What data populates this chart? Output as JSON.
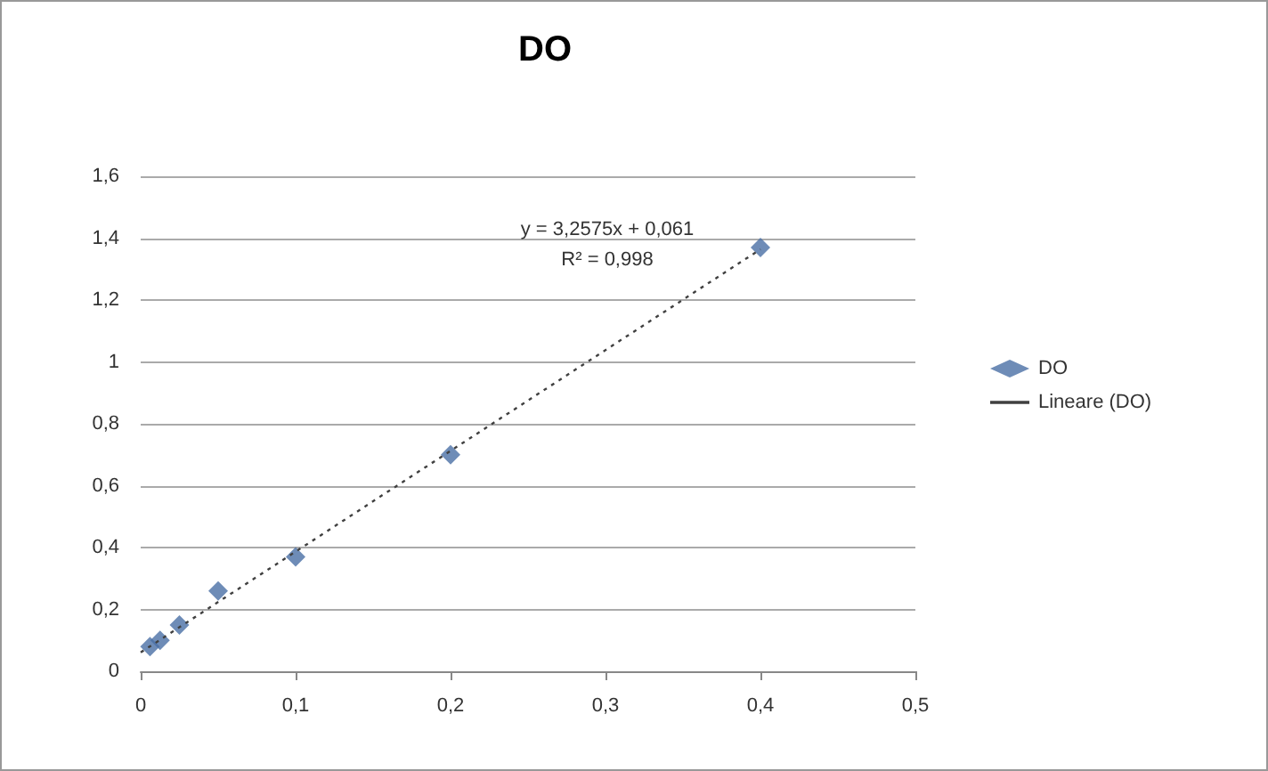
{
  "chart_data": {
    "type": "scatter",
    "title": "DO",
    "series": [
      {
        "name": "DO",
        "type": "scatter",
        "color": "#4a6fa5",
        "marker": "diamond",
        "x": [
          0.006,
          0.0125,
          0.025,
          0.05,
          0.1,
          0.2,
          0.4
        ],
        "values": [
          0.08,
          0.1,
          0.15,
          0.26,
          0.37,
          0.7,
          1.37
        ]
      },
      {
        "name": "Lineare (DO)",
        "type": "line",
        "color": "#404040",
        "line_style": "dotted",
        "marker": "none",
        "x": [
          0,
          0.4
        ],
        "values": [
          0.061,
          1.364
        ]
      }
    ],
    "xlim": [
      0,
      0.5
    ],
    "xticks": [
      0,
      {
        "value": 0.1,
        "label": "0,1"
      },
      {
        "value": 0.2,
        "label": "0,2"
      },
      {
        "value": 0.3,
        "label": "0,3"
      },
      {
        "value": 0.4,
        "label": "0,4"
      },
      {
        "value": 0.5,
        "label": "0,5"
      }
    ],
    "ylim": [
      0,
      1.6
    ],
    "yticks": [
      0,
      {
        "value": 0.2,
        "label": "0,2"
      },
      {
        "value": 0.4,
        "label": "0,4"
      },
      {
        "value": 0.6,
        "label": "0,6"
      },
      {
        "value": 0.8,
        "label": "0,8"
      },
      1,
      {
        "value": 1.2,
        "label": "1,2"
      },
      {
        "value": 1.4,
        "label": "1,4"
      },
      {
        "value": 1.6,
        "label": "1,6"
      }
    ],
    "annotations": [
      "y = 3,2575x + 0,061",
      "R² = 0,998"
    ],
    "grid": "y",
    "legend": "right"
  }
}
